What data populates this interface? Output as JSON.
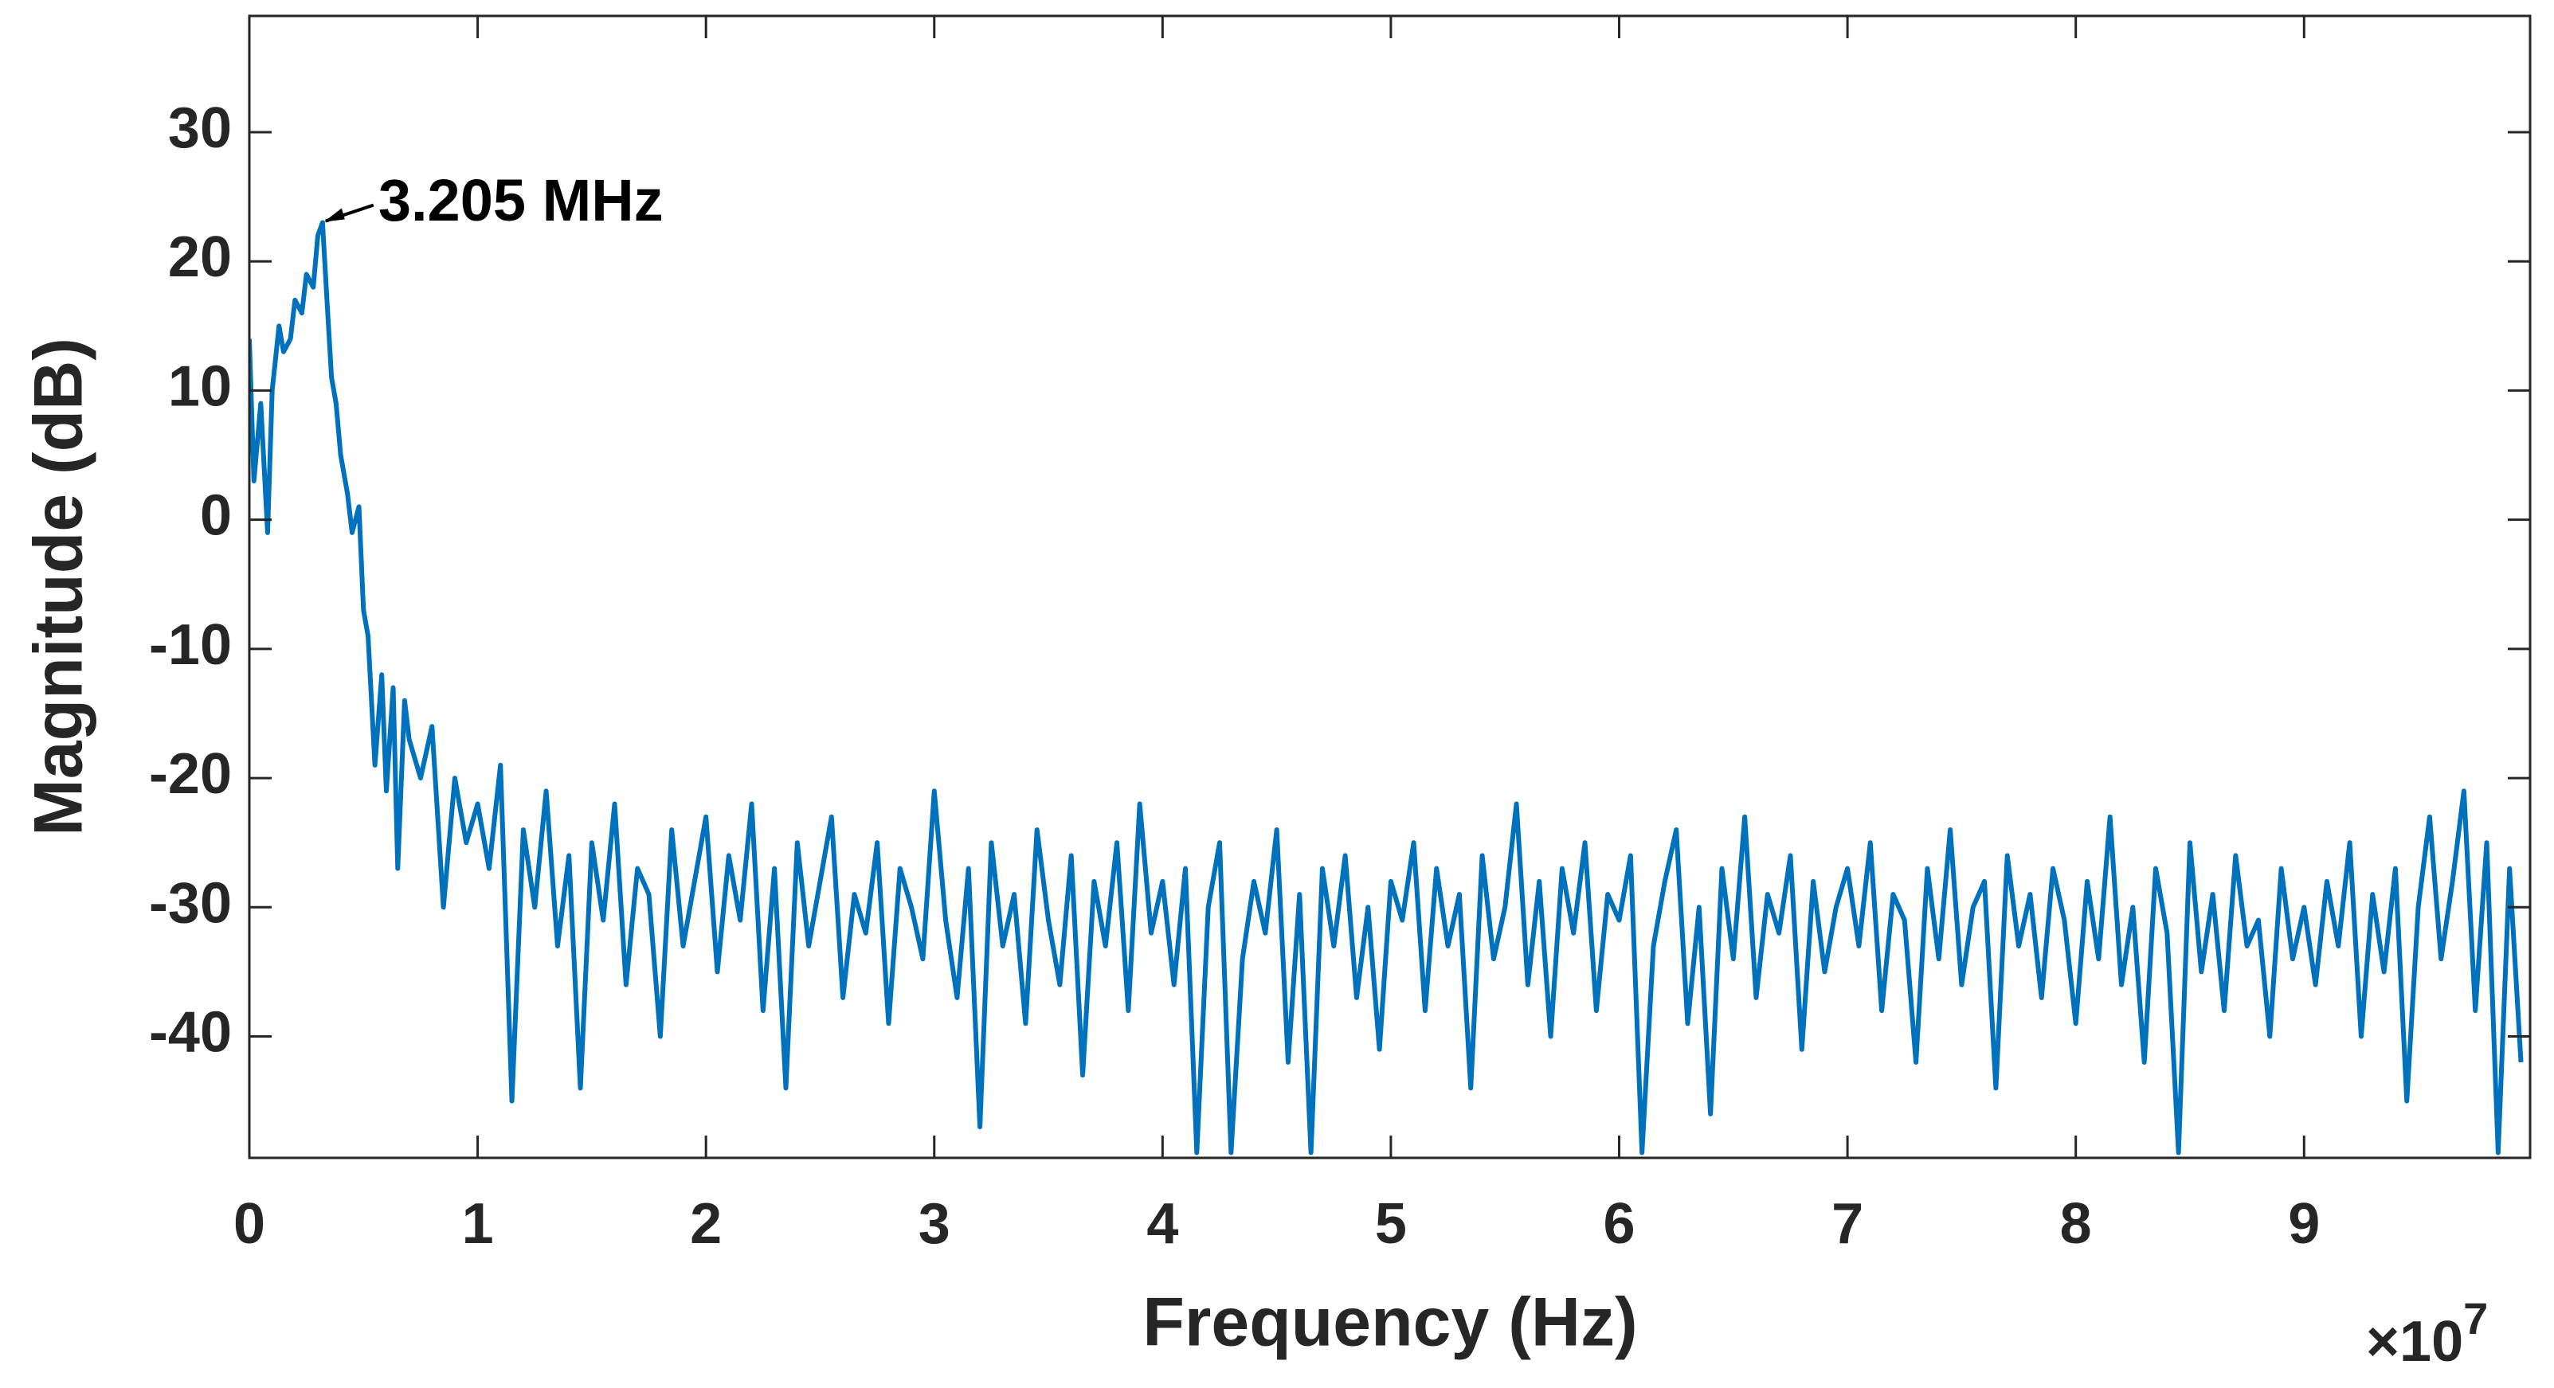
{
  "chart_data": {
    "type": "line",
    "xlabel": "Frequency (Hz)",
    "ylabel": "Magnitude (dB)",
    "x_scale_label": {
      "base": "×10",
      "exponent": "7"
    },
    "annotation": {
      "text": "3.205 MHz",
      "x": 0.3205,
      "y": 23
    },
    "xlim": [
      0,
      9.99
    ],
    "ylim": [
      -49.4,
      39
    ],
    "xticks": [
      0,
      1,
      2,
      3,
      4,
      5,
      6,
      7,
      8,
      9
    ],
    "yticks": [
      -40,
      -30,
      -20,
      -10,
      0,
      10,
      20,
      30
    ],
    "grid": false,
    "x": [
      0,
      0.02,
      0.05,
      0.08,
      0.1,
      0.13,
      0.15,
      0.18,
      0.2,
      0.23,
      0.25,
      0.28,
      0.3,
      0.3205,
      0.34,
      0.36,
      0.38,
      0.4,
      0.43,
      0.45,
      0.48,
      0.5,
      0.52,
      0.55,
      0.58,
      0.6,
      0.63,
      0.65,
      0.68,
      0.7,
      0.75,
      0.8,
      0.85,
      0.9,
      0.95,
      1.0,
      1.05,
      1.1,
      1.15,
      1.2,
      1.25,
      1.3,
      1.35,
      1.4,
      1.45,
      1.5,
      1.55,
      1.6,
      1.65,
      1.7,
      1.75,
      1.8,
      1.85,
      1.9,
      1.95,
      2.0,
      2.05,
      2.1,
      2.15,
      2.2,
      2.25,
      2.3,
      2.35,
      2.4,
      2.45,
      2.5,
      2.55,
      2.6,
      2.65,
      2.7,
      2.75,
      2.8,
      2.85,
      2.9,
      2.95,
      3.0,
      3.05,
      3.1,
      3.15,
      3.2,
      3.25,
      3.3,
      3.35,
      3.4,
      3.45,
      3.5,
      3.55,
      3.6,
      3.65,
      3.7,
      3.75,
      3.8,
      3.85,
      3.9,
      3.95,
      4.0,
      4.05,
      4.1,
      4.15,
      4.2,
      4.25,
      4.3,
      4.35,
      4.4,
      4.45,
      4.5,
      4.55,
      4.6,
      4.65,
      4.7,
      4.75,
      4.8,
      4.85,
      4.9,
      4.95,
      5.0,
      5.05,
      5.1,
      5.15,
      5.2,
      5.25,
      5.3,
      5.35,
      5.4,
      5.45,
      5.5,
      5.55,
      5.6,
      5.65,
      5.7,
      5.75,
      5.8,
      5.85,
      5.9,
      5.95,
      6.0,
      6.05,
      6.1,
      6.15,
      6.2,
      6.25,
      6.3,
      6.35,
      6.4,
      6.45,
      6.5,
      6.55,
      6.6,
      6.65,
      6.7,
      6.75,
      6.8,
      6.85,
      6.9,
      6.95,
      7.0,
      7.05,
      7.1,
      7.15,
      7.2,
      7.25,
      7.3,
      7.35,
      7.4,
      7.45,
      7.5,
      7.55,
      7.6,
      7.65,
      7.7,
      7.75,
      7.8,
      7.85,
      7.9,
      7.95,
      8.0,
      8.05,
      8.1,
      8.15,
      8.2,
      8.25,
      8.3,
      8.35,
      8.4,
      8.45,
      8.5,
      8.55,
      8.6,
      8.65,
      8.7,
      8.75,
      8.8,
      8.85,
      8.9,
      8.95,
      9.0,
      9.05,
      9.1,
      9.15,
      9.2,
      9.25,
      9.3,
      9.35,
      9.4,
      9.45,
      9.5,
      9.55,
      9.6,
      9.65,
      9.7,
      9.75,
      9.8,
      9.85,
      9.9,
      9.95
    ],
    "series": [
      {
        "color": "#0072BD",
        "values": [
          14,
          3,
          9,
          -1,
          10,
          15,
          13,
          14,
          17,
          16,
          19,
          18,
          22,
          23,
          17,
          11,
          9,
          5,
          2,
          -1,
          1,
          -7,
          -9,
          -19,
          -12,
          -21,
          -13,
          -27,
          -14,
          -17,
          -20,
          -16,
          -30,
          -20,
          -25,
          -22,
          -27,
          -19,
          -45,
          -24,
          -30,
          -21,
          -33,
          -26,
          -44,
          -25,
          -31,
          -22,
          -36,
          -27,
          -29,
          -40,
          -24,
          -33,
          -28,
          -23,
          -35,
          -26,
          -31,
          -22,
          -38,
          -27,
          -44,
          -25,
          -33,
          -28,
          -23,
          -37,
          -29,
          -32,
          -25,
          -39,
          -27,
          -30,
          -34,
          -21,
          -31,
          -37,
          -27,
          -47,
          -25,
          -33,
          -29,
          -39,
          -24,
          -31,
          -36,
          -26,
          -43,
          -28,
          -33,
          -25,
          -38,
          -22,
          -32,
          -28,
          -36,
          -27,
          -49,
          -30,
          -25,
          -49,
          -34,
          -28,
          -32,
          -24,
          -42,
          -29,
          -49,
          -27,
          -33,
          -26,
          -37,
          -30,
          -41,
          -28,
          -31,
          -25,
          -38,
          -27,
          -33,
          -29,
          -44,
          -26,
          -34,
          -30,
          -22,
          -36,
          -28,
          -40,
          -27,
          -32,
          -25,
          -38,
          -29,
          -31,
          -26,
          -49,
          -33,
          -28,
          -24,
          -39,
          -30,
          -46,
          -27,
          -34,
          -23,
          -37,
          -29,
          -32,
          -26,
          -41,
          -28,
          -35,
          -30,
          -27,
          -33,
          -25,
          -38,
          -29,
          -31,
          -42,
          -27,
          -34,
          -24,
          -36,
          -30,
          -28,
          -44,
          -26,
          -33,
          -29,
          -37,
          -27,
          -31,
          -39,
          -28,
          -34,
          -23,
          -36,
          -30,
          -42,
          -27,
          -32,
          -49,
          -25,
          -35,
          -29,
          -38,
          -26,
          -33,
          -31,
          -40,
          -27,
          -34,
          -30,
          -36,
          -28,
          -33,
          -25,
          -40,
          -29,
          -35,
          -27,
          -45,
          -30,
          -23,
          -34,
          -28,
          -21,
          -38,
          -25,
          -49,
          -27,
          -42
        ]
      }
    ]
  }
}
